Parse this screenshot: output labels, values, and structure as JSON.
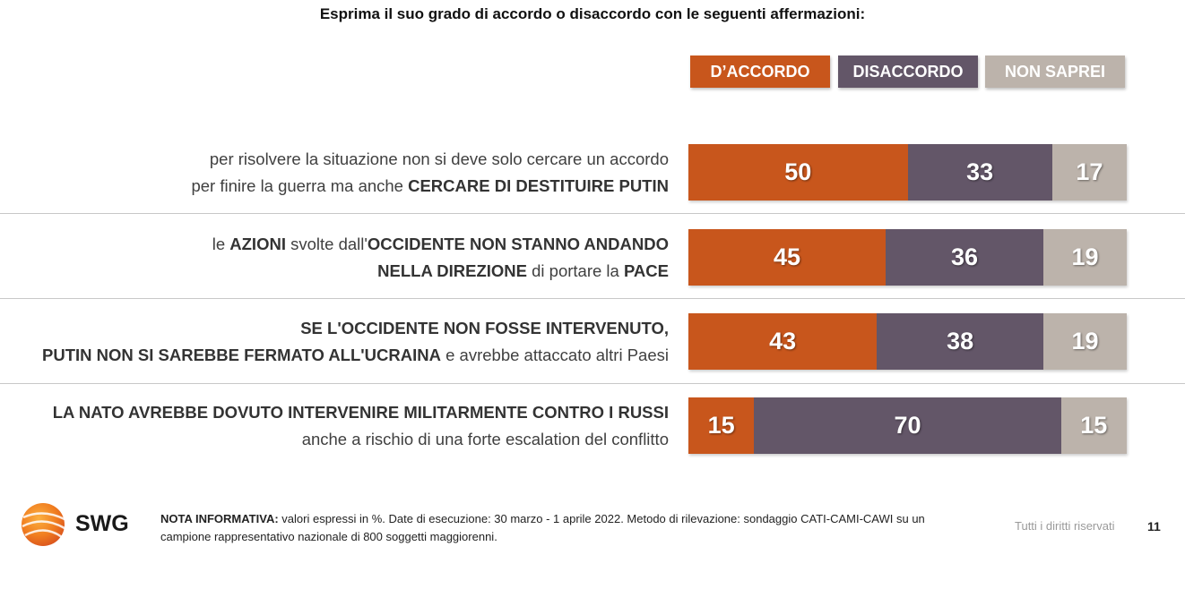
{
  "title": "Esprima il suo grado di accordo o disaccordo con le seguenti affermazioni:",
  "legend": [
    {
      "label": "D’ACCORDO",
      "color": "#c8561c"
    },
    {
      "label": "DISACCORDO",
      "color": "#635668"
    },
    {
      "label": "NON SAPREI",
      "color": "#bcb3ab"
    }
  ],
  "rows": [
    {
      "line1": [
        {
          "t": "per risolvere la situazione non si deve solo cercare un accordo",
          "b": false
        }
      ],
      "line2": [
        {
          "t": "per finire la guerra ma anche ",
          "b": false
        },
        {
          "t": "CERCARE DI DESTITUIRE PUTIN",
          "b": true
        }
      ]
    },
    {
      "line1": [
        {
          "t": "le ",
          "b": false
        },
        {
          "t": "AZIONI",
          "b": true
        },
        {
          "t": " svolte dall'",
          "b": false
        },
        {
          "t": "OCCIDENTE NON STANNO ANDANDO",
          "b": true
        }
      ],
      "line2": [
        {
          "t": "NELLA DIREZIONE",
          "b": true
        },
        {
          "t": " di portare la ",
          "b": false
        },
        {
          "t": "PACE",
          "b": true
        }
      ]
    },
    {
      "line1": [
        {
          "t": "SE L'OCCIDENTE NON FOSSE INTERVENUTO,",
          "b": true
        }
      ],
      "line2": [
        {
          "t": "PUTIN NON SI SAREBBE FERMATO ALL'UCRAINA",
          "b": true
        },
        {
          "t": " e avrebbe attaccato altri Paesi",
          "b": false
        }
      ]
    },
    {
      "line1": [
        {
          "t": "LA NATO AVREBBE DOVUTO INTERVENIRE MILITARMENTE CONTRO I RUSSI",
          "b": true
        }
      ],
      "line2": [
        {
          "t": "anche a rischio di una forte escalation del conflitto",
          "b": false
        }
      ]
    }
  ],
  "chart_data": {
    "type": "bar",
    "orientation": "horizontal",
    "stacked": true,
    "title": "Esprima il suo grado di accordo o disaccordo con le seguenti affermazioni:",
    "categories": [
      "per risolvere la situazione non si deve solo cercare un accordo per finire la guerra ma anche CERCARE DI DESTITUIRE PUTIN",
      "le AZIONI svolte dall'OCCIDENTE NON STANNO ANDANDO NELLA DIREZIONE di portare la PACE",
      "SE L'OCCIDENTE NON FOSSE INTERVENUTO, PUTIN NON SI SAREBBE FERMATO ALL'UCRAINA e avrebbe attaccato altri Paesi",
      "LA NATO AVREBBE DOVUTO INTERVENIRE MILITARMENTE CONTRO I RUSSI anche a rischio di una forte escalation del conflitto"
    ],
    "series": [
      {
        "name": "D’ACCORDO",
        "values": [
          50,
          45,
          43,
          15
        ],
        "color": "#c8561c"
      },
      {
        "name": "DISACCORDO",
        "values": [
          33,
          36,
          38,
          70
        ],
        "color": "#635668"
      },
      {
        "name": "NON SAPREI",
        "values": [
          17,
          19,
          19,
          15
        ],
        "color": "#bcb3ab"
      }
    ],
    "xlim": [
      0,
      100
    ],
    "legend_position": "top-right",
    "grid": false
  },
  "footer": {
    "note_label": "NOTA INFORMATIVA:",
    "note_text": " valori espressi in %. Date di esecuzione: 30 marzo - 1 aprile 2022. Metodo di rilevazione: sondaggio CATI-CAMI-CAWI su un campione rappresentativo nazionale di 800 soggetti maggiorenni.",
    "rights": "Tutti i diritti riservati",
    "page_number": "11",
    "logo_text": "SWG"
  }
}
